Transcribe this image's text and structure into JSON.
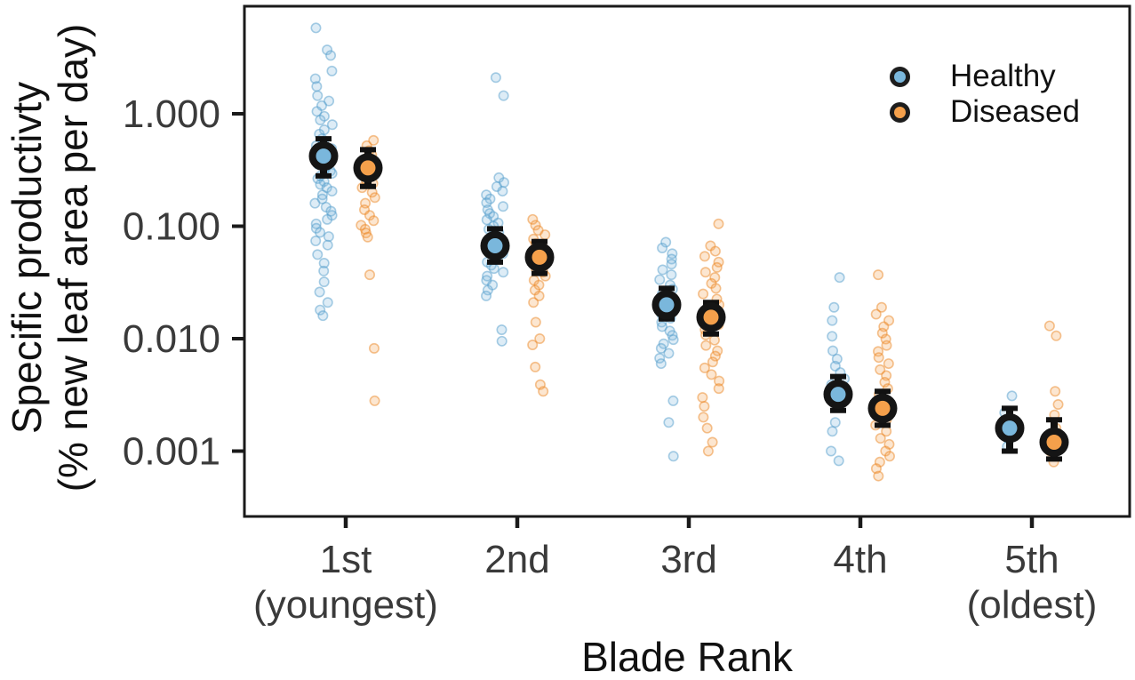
{
  "chart_data": {
    "type": "scatter",
    "subtype": "jittered points with mean and standard-error bars, dodged by group",
    "title": "",
    "xlabel": "Blade Rank",
    "ylabel_line1": "Specific productivty",
    "ylabel_line2": "(% new leaf area per day)",
    "y_scale": "log10",
    "ylim": [
      0.00026,
      9.0
    ],
    "grid": "off",
    "panel_border_color": "#1a1a1a",
    "tick_label_color": "#3a3a3a",
    "y_ticks": {
      "values": [
        1.0,
        0.1,
        0.01,
        0.001
      ],
      "labels": [
        "1.000",
        "0.100",
        "0.010",
        "0.001"
      ]
    },
    "categories": [
      {
        "label": "1st",
        "sublabel": "(youngest)"
      },
      {
        "label": "2nd",
        "sublabel": ""
      },
      {
        "label": "3rd",
        "sublabel": ""
      },
      {
        "label": "4th",
        "sublabel": ""
      },
      {
        "label": "5th",
        "sublabel": "(oldest)"
      }
    ],
    "legend": {
      "position": "top-right-inside",
      "entries": [
        {
          "label": "Healthy",
          "marker": "circle-black-ring",
          "color": "#7ab7dc"
        },
        {
          "label": "Diseased",
          "marker": "circle-black-ring",
          "color": "#f5a04b"
        }
      ]
    },
    "series": [
      {
        "name": "Healthy",
        "color": "#7ab7dc",
        "stroke": "#549dcb",
        "mean_ring_color": "#151515",
        "means": [
          0.42,
          0.067,
          0.02,
          0.0032,
          0.0016
        ],
        "err_lo": [
          0.28,
          0.048,
          0.015,
          0.0023,
          0.001
        ],
        "err_hi": [
          0.6,
          0.095,
          0.028,
          0.0046,
          0.0024
        ],
        "points": [
          [
            5.8,
            3.7,
            3.3,
            2.4,
            2.05,
            1.75,
            1.45,
            1.3,
            1.18,
            1.05,
            0.95,
            0.88,
            0.8,
            0.72,
            0.66,
            0.6,
            0.56,
            0.52,
            0.49,
            0.465,
            0.44,
            0.42,
            0.4,
            0.385,
            0.37,
            0.355,
            0.34,
            0.325,
            0.31,
            0.295,
            0.28,
            0.265,
            0.25,
            0.235,
            0.22,
            0.205,
            0.19,
            0.175,
            0.16,
            0.148,
            0.136,
            0.125,
            0.115,
            0.105,
            0.096,
            0.088,
            0.081,
            0.074,
            0.068,
            0.056,
            0.047,
            0.04,
            0.032,
            0.026,
            0.021,
            0.018,
            0.016
          ],
          [
            2.1,
            1.45,
            0.27,
            0.245,
            0.225,
            0.205,
            0.19,
            0.175,
            0.162,
            0.15,
            0.14,
            0.13,
            0.122,
            0.114,
            0.107,
            0.1,
            0.094,
            0.088,
            0.083,
            0.078,
            0.073,
            0.069,
            0.065,
            0.061,
            0.057,
            0.054,
            0.051,
            0.048,
            0.045,
            0.042,
            0.039,
            0.036,
            0.033,
            0.03,
            0.027,
            0.024,
            0.012,
            0.0095
          ],
          [
            0.072,
            0.064,
            0.057,
            0.051,
            0.046,
            0.041,
            0.037,
            0.0335,
            0.03,
            0.0275,
            0.025,
            0.023,
            0.021,
            0.0195,
            0.018,
            0.0165,
            0.0152,
            0.014,
            0.0128,
            0.0117,
            0.0107,
            0.0098,
            0.009,
            0.0082,
            0.0074,
            0.0067,
            0.006,
            0.0028,
            0.0018,
            0.0009
          ],
          [
            0.035,
            0.019,
            0.0145,
            0.0105,
            0.0078,
            0.0066,
            0.0057,
            0.005,
            0.0044,
            0.0039,
            0.0034,
            0.003,
            0.0018,
            0.0015,
            0.001,
            0.00082
          ],
          [
            0.0031,
            0.0022,
            0.0018,
            0.0015,
            0.0013,
            0.0011
          ]
        ]
      },
      {
        "name": "Diseased",
        "color": "#f5a04b",
        "stroke": "#ec8826",
        "mean_ring_color": "#151515",
        "means": [
          0.33,
          0.053,
          0.0155,
          0.0024,
          0.0012
        ],
        "err_lo": [
          0.226,
          0.038,
          0.011,
          0.0017,
          0.00085
        ],
        "err_hi": [
          0.48,
          0.073,
          0.021,
          0.0034,
          0.0019
        ],
        "points": [
          [
            0.58,
            0.52,
            0.47,
            0.43,
            0.4,
            0.37,
            0.345,
            0.32,
            0.3,
            0.28,
            0.26,
            0.24,
            0.22,
            0.2,
            0.18,
            0.16,
            0.14,
            0.125,
            0.112,
            0.102,
            0.094,
            0.087,
            0.08,
            0.037,
            0.0082,
            0.0028
          ],
          [
            0.115,
            0.102,
            0.092,
            0.084,
            0.077,
            0.07,
            0.064,
            0.059,
            0.054,
            0.05,
            0.046,
            0.042,
            0.039,
            0.036,
            0.033,
            0.03,
            0.027,
            0.024,
            0.021,
            0.014,
            0.01,
            0.0088,
            0.0056,
            0.0039,
            0.0034
          ],
          [
            0.105,
            0.067,
            0.06,
            0.054,
            0.048,
            0.043,
            0.039,
            0.035,
            0.031,
            0.028,
            0.025,
            0.0225,
            0.02,
            0.018,
            0.0163,
            0.0147,
            0.0133,
            0.012,
            0.0108,
            0.0097,
            0.0087,
            0.0078,
            0.007,
            0.0062,
            0.0055,
            0.0048,
            0.0042,
            0.0036,
            0.003,
            0.0025,
            0.002,
            0.0016,
            0.0012,
            0.001
          ],
          [
            0.037,
            0.019,
            0.0165,
            0.0145,
            0.0128,
            0.0112,
            0.0099,
            0.0087,
            0.0077,
            0.0068,
            0.006,
            0.0053,
            0.0047,
            0.0041,
            0.0036,
            0.0032,
            0.0028,
            0.0025,
            0.0022,
            0.0019,
            0.0017,
            0.0015,
            0.0013,
            0.00115,
            0.001,
            0.0009,
            0.0008,
            0.0007,
            0.0006
          ],
          [
            0.013,
            0.0106,
            0.0034,
            0.0026,
            0.0021,
            0.0016,
            0.0013,
            0.001,
            0.0008
          ]
        ]
      }
    ]
  }
}
